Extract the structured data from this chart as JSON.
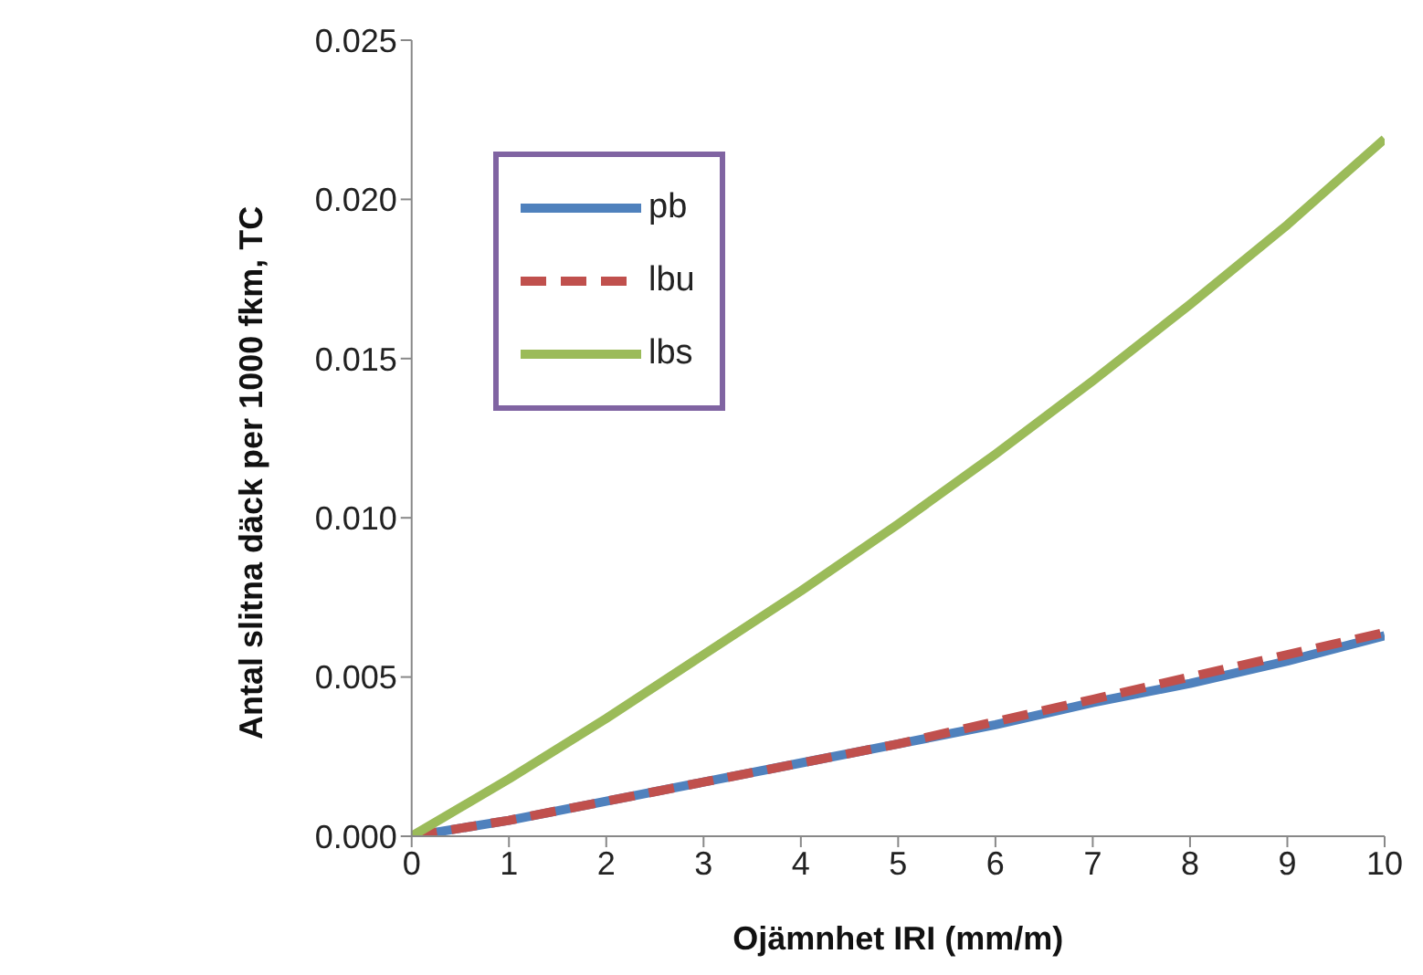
{
  "chart_data": {
    "type": "line",
    "xlabel": "Ojämnhet IRI (mm/m)",
    "ylabel": "Antal slitna däck per 1000 fkm, TC",
    "x": [
      0,
      1,
      2,
      3,
      4,
      5,
      6,
      7,
      8,
      9,
      10
    ],
    "series": [
      {
        "name": "pb",
        "color": "#4f81bd",
        "line_style": "solid",
        "values": [
          0,
          0.0005,
          0.0011,
          0.0017,
          0.0023,
          0.0029,
          0.0035,
          0.0042,
          0.0048,
          0.0055,
          0.0063
        ]
      },
      {
        "name": "lbu",
        "color": "#c0504d",
        "line_style": "dashed",
        "values": [
          0,
          0.0005,
          0.0011,
          0.0017,
          0.0023,
          0.0029,
          0.0036,
          0.0043,
          0.005,
          0.0057,
          0.0064
        ]
      },
      {
        "name": "lbs",
        "color": "#9bbb59",
        "line_style": "solid",
        "values": [
          0,
          0.0018,
          0.0037,
          0.0057,
          0.0077,
          0.0098,
          0.012,
          0.0143,
          0.0167,
          0.0192,
          0.0219
        ]
      }
    ],
    "xlim": [
      0,
      10
    ],
    "xticks": [
      0,
      1,
      2,
      3,
      4,
      5,
      6,
      7,
      8,
      9,
      10
    ],
    "ylim": [
      0,
      0.025
    ],
    "yticks": [
      {
        "value": 0,
        "label": "0.000"
      },
      {
        "value": 0.005,
        "label": "0.005"
      },
      {
        "value": 0.01,
        "label": "0.010"
      },
      {
        "value": 0.015,
        "label": "0.015"
      },
      {
        "value": 0.02,
        "label": "0.020"
      },
      {
        "value": 0.025,
        "label": "0.025"
      }
    ],
    "grid": false,
    "legend": "top left",
    "marker": "none"
  }
}
